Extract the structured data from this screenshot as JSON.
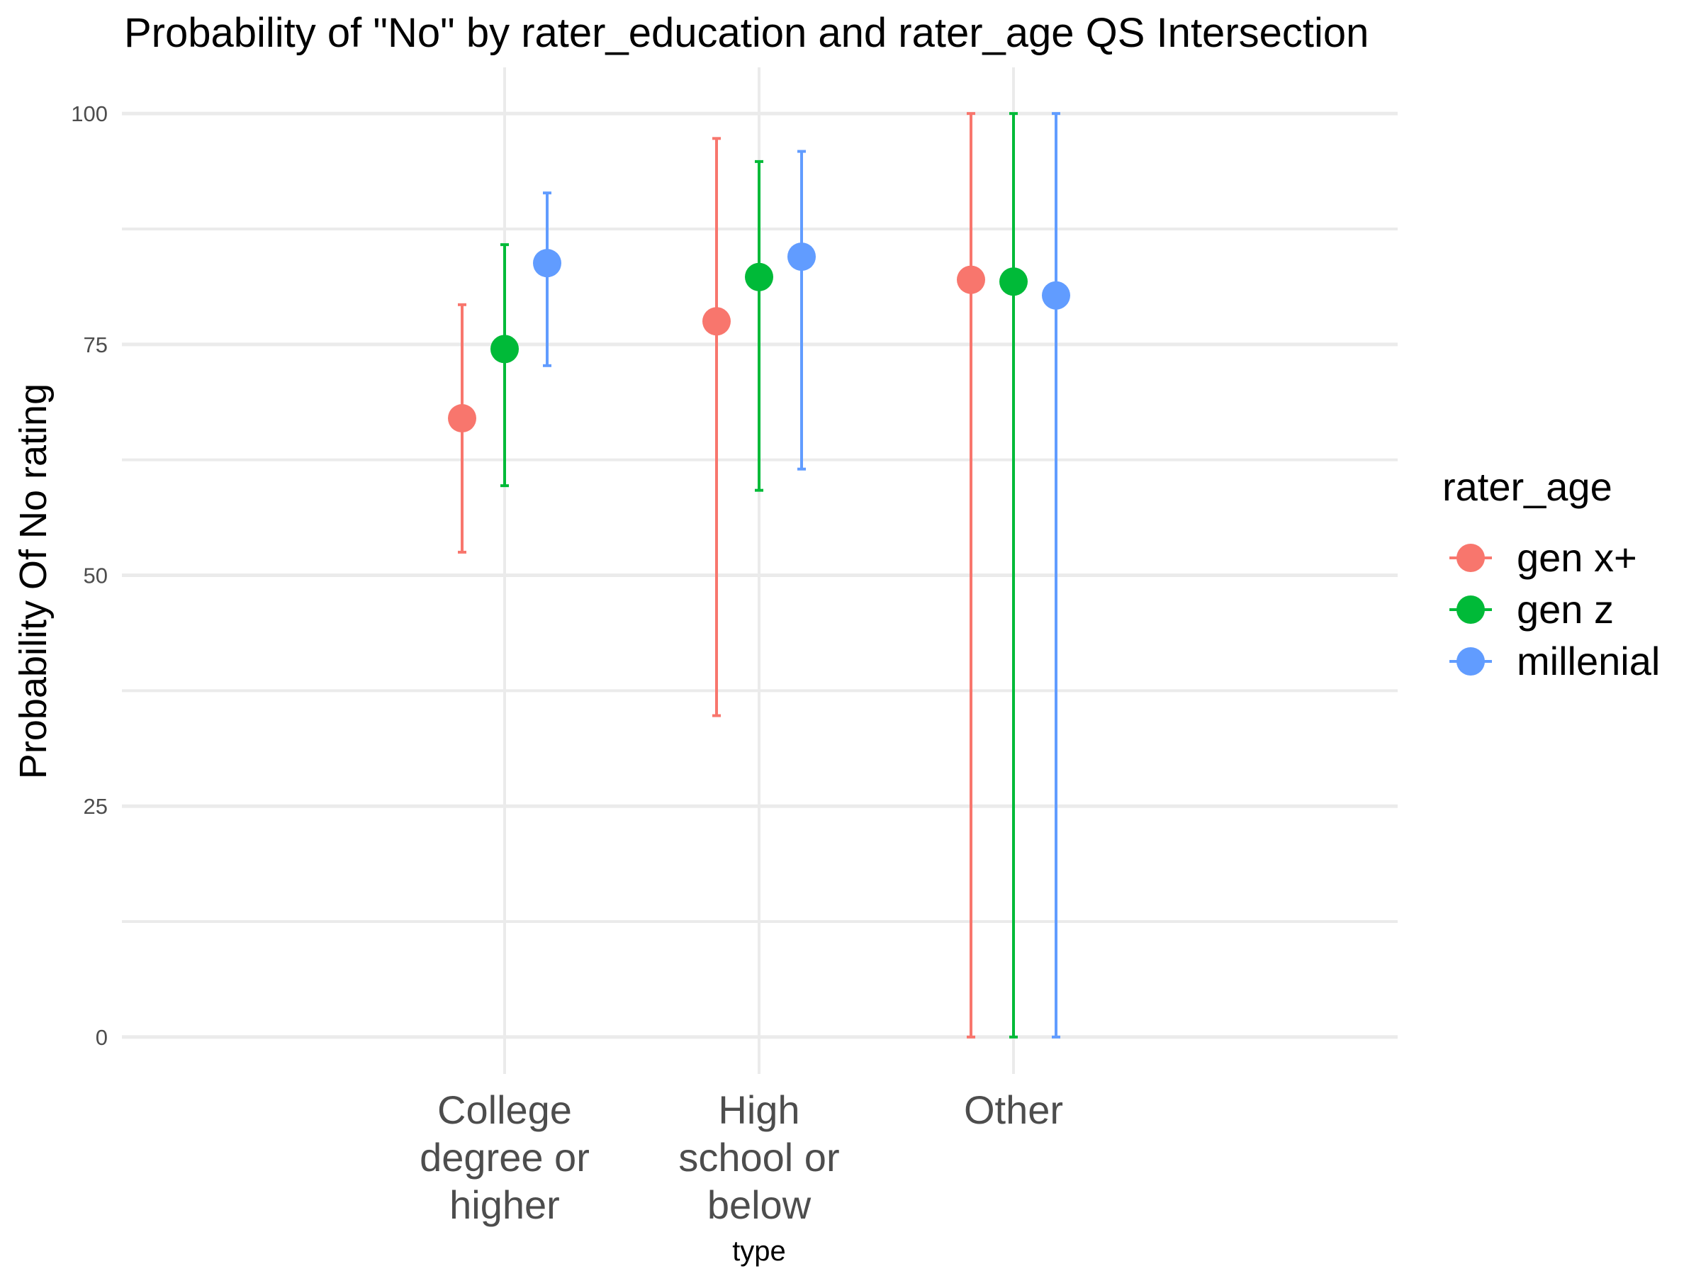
{
  "chart_data": {
    "type": "scatter",
    "title": "Probability of \"No\" by rater_education and  rater_age  QS Intersection",
    "xlabel": "type",
    "ylabel": "Probability Of No rating",
    "ylim": [
      -4,
      105
    ],
    "yticks": [
      "0",
      "25",
      "50",
      "75",
      "100"
    ],
    "grid": true,
    "legend_position": "right",
    "legend_title": "rater_age",
    "categories": [
      [
        "College",
        "degree or",
        "higher"
      ],
      [
        "High",
        "school or",
        "below"
      ],
      [
        "Other"
      ]
    ],
    "series": [
      {
        "name": "gen x+",
        "color": "#F8766D",
        "values": [
          67,
          77.5,
          82
        ],
        "lower": [
          52.5,
          34.8,
          0
        ],
        "upper": [
          79.3,
          97.3,
          100
        ]
      },
      {
        "name": "gen z",
        "color": "#00BA38",
        "values": [
          74.5,
          82.3,
          81.8
        ],
        "lower": [
          59.7,
          59.2,
          0
        ],
        "upper": [
          85.8,
          94.8,
          100
        ]
      },
      {
        "name": "millenial",
        "color": "#619CFF",
        "values": [
          83.8,
          84.5,
          80.3
        ],
        "lower": [
          72.7,
          61.5,
          0
        ],
        "upper": [
          91.4,
          95.9,
          100
        ]
      }
    ]
  }
}
